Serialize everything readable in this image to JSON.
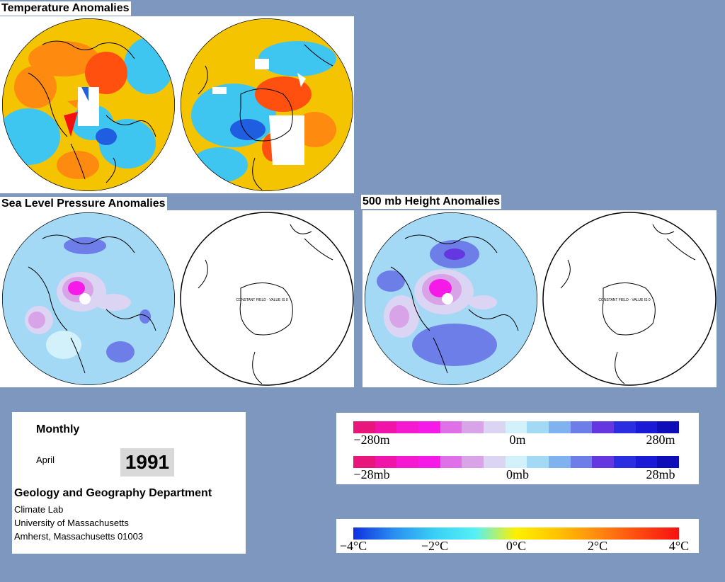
{
  "sections": {
    "temperature_title": "Temperature Anomalies",
    "slp_title": "Sea Level Pressure Anomalies",
    "height_title": "500 mb Height Anomalies"
  },
  "map_notes": {
    "constant_field": "CONSTANT FIELD - VALUE IS 0"
  },
  "info": {
    "period": "Monthly",
    "month": "April",
    "year": "1991",
    "department": "Geology and Geography Department",
    "lab": "Climate Lab",
    "university": "University of Massachusetts",
    "address": "Amherst, Massachusetts 01003"
  },
  "legend_height": {
    "ticks": [
      "−280m",
      "0m",
      "280m"
    ],
    "colors": [
      "#e8157a",
      "#f015a8",
      "#f51ad2",
      "#f51ae8",
      "#e070e8",
      "#d9a3e8",
      "#dcd4f3",
      "#d2f1fb",
      "#a3d9f5",
      "#7fb2ee",
      "#6e7ee8",
      "#6437e0",
      "#2b2de0",
      "#1a1ad6",
      "#0e0eb8"
    ]
  },
  "legend_pressure": {
    "ticks": [
      "−28mb",
      "0mb",
      "28mb"
    ],
    "colors": [
      "#e8157a",
      "#f015a8",
      "#f51ad2",
      "#f51ae8",
      "#e070e8",
      "#d9a3e8",
      "#dcd4f3",
      "#d2f1fb",
      "#a3d9f5",
      "#7fb2ee",
      "#6e7ee8",
      "#6437e0",
      "#2b2de0",
      "#1a1ad6",
      "#0e0eb8"
    ]
  },
  "legend_temperature": {
    "ticks": [
      "−4°C",
      "−2°C",
      "0°C",
      "2°C",
      "4°C"
    ],
    "gradient": [
      "#1030e0",
      "#2a8ef0",
      "#3ad0f5",
      "#55f0f5",
      "#fff000",
      "#ffc400",
      "#ff8a10",
      "#ff4a10",
      "#f51010"
    ]
  },
  "colors": {
    "background": "#7d97bf",
    "warm": "#ff6a00",
    "cool": "#2aa8f0",
    "neutral": "#ffc400"
  }
}
